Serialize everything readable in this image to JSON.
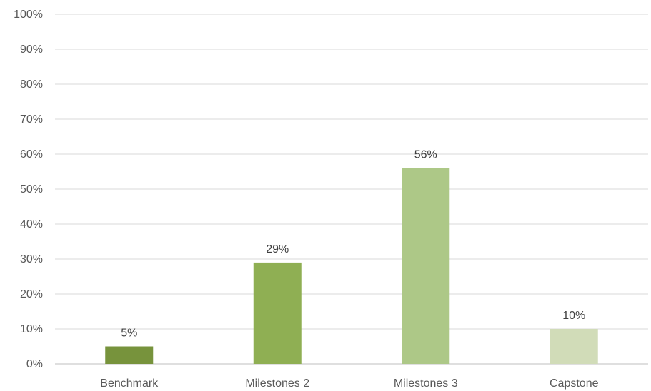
{
  "chart_data": {
    "type": "bar",
    "categories": [
      "Benchmark",
      "Milestones 2",
      "Milestones 3",
      "Capstone"
    ],
    "values": [
      5,
      29,
      56,
      10
    ],
    "data_labels": [
      "5%",
      "29%",
      "56%",
      "10%"
    ],
    "bar_colors": [
      "#77933c",
      "#8faf53",
      "#adc887",
      "#d1dcb8"
    ],
    "ylim": [
      0,
      100
    ],
    "yticks": [
      "0%",
      "10%",
      "20%",
      "30%",
      "40%",
      "50%",
      "60%",
      "70%",
      "80%",
      "90%",
      "100%"
    ],
    "grid": true,
    "legend": "none"
  }
}
